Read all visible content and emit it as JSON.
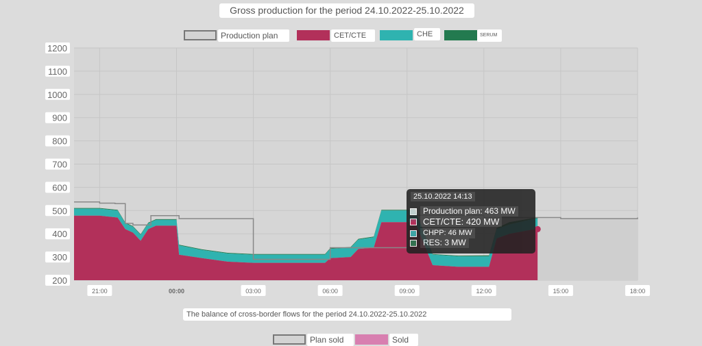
{
  "title": "Gross production for the period 24.10.2022-25.10.2022",
  "subtitle": "The balance of cross-border flows for the period 24.10.2022-25.10.2022",
  "legend": [
    {
      "label": "Production plan",
      "color": "#d3d3d3",
      "border": "#777777"
    },
    {
      "label": "CET/CTE",
      "color": "#b2305a",
      "border": "#b2305a"
    },
    {
      "label": "CHE",
      "color": "#2fb3b0",
      "border": "#2fb3b0"
    },
    {
      "label": "SERUM",
      "color": "#237a4f",
      "border": "#237a4f"
    }
  ],
  "legend2": [
    {
      "label": "Plan sold",
      "color": "#d3d3d3",
      "border": "#777777"
    },
    {
      "label": "Sold",
      "color": "#d87fb0",
      "border": "#d87fb0"
    }
  ],
  "tooltip": {
    "title": "25.10.2022 14:13",
    "rows": [
      {
        "label": "Production plan: 463 MW",
        "color": "#d3d3d3"
      },
      {
        "label": "CET/CTE: 420 MW",
        "color": "#b2305a"
      },
      {
        "label": "CHPP: 46 MW",
        "color": "#2fb3b0"
      },
      {
        "label": "RES: 3 MW",
        "color": "#237a4f"
      }
    ]
  },
  "chart_data": {
    "type": "area",
    "title": "Gross production for the period 24.10.2022-25.10.2022",
    "ylim": [
      200,
      1200
    ],
    "yticks": [
      1200,
      1100,
      1000,
      900,
      800,
      700,
      600,
      500,
      400,
      300,
      200
    ],
    "xticks": [
      {
        "label": "21:00",
        "h": 21
      },
      {
        "label": "00:00",
        "h": 24
      },
      {
        "label": "03:00",
        "h": 27
      },
      {
        "label": "06:00",
        "h": 30
      },
      {
        "label": "09:00",
        "h": 33
      },
      {
        "label": "12:00",
        "h": 36
      },
      {
        "label": "15:00",
        "h": 39
      },
      {
        "label": "18:00",
        "h": 42
      }
    ],
    "xlim": [
      20,
      42
    ],
    "grid": true,
    "series": [
      {
        "name": "Production plan",
        "kind": "step",
        "color": "#888888",
        "x": [
          20,
          21,
          21.6,
          22,
          22.3,
          23,
          24,
          24.1,
          27,
          30,
          33,
          36,
          39,
          42
        ],
        "y": [
          537,
          532,
          530,
          445,
          438,
          478,
          478,
          465,
          290,
          340,
          480,
          470,
          465,
          470
        ]
      },
      {
        "name": "CET/CTE",
        "color": "#b2305a",
        "x": [
          20,
          21,
          21.7,
          22,
          22.3,
          22.6,
          22.9,
          23.2,
          24,
          24.1,
          25,
          26,
          27,
          28,
          29.8,
          30,
          30.8,
          31.1,
          31.7,
          32,
          33.1,
          33.3,
          34,
          35,
          36.2,
          36.5,
          37,
          38,
          38.1
        ],
        "y": [
          478,
          478,
          470,
          420,
          405,
          370,
          420,
          435,
          435,
          310,
          295,
          280,
          275,
          275,
          275,
          295,
          300,
          335,
          340,
          450,
          450,
          455,
          265,
          258,
          258,
          380,
          400,
          420,
          420
        ]
      },
      {
        "name": "CHPP",
        "color": "#2fb3b0",
        "x": [
          20,
          21,
          21.7,
          22,
          22.3,
          22.6,
          22.9,
          23.2,
          24,
          24.1,
          25,
          26,
          27,
          28,
          29.8,
          30,
          30.8,
          31.1,
          31.7,
          32,
          33.1,
          33.3,
          34,
          35,
          36.2,
          36.5,
          37,
          38,
          38.1
        ],
        "y": [
          30,
          30,
          30,
          25,
          25,
          25,
          25,
          25,
          25,
          40,
          35,
          35,
          35,
          35,
          35,
          40,
          40,
          40,
          45,
          50,
          50,
          50,
          45,
          45,
          45,
          40,
          40,
          46,
          46
        ]
      },
      {
        "name": "RES",
        "color": "#237a4f",
        "x": [
          20,
          24,
          28,
          32,
          36,
          36.5,
          37,
          38,
          38.1
        ],
        "y": [
          3,
          3,
          3,
          3,
          3,
          5,
          10,
          3,
          3
        ]
      }
    ]
  }
}
